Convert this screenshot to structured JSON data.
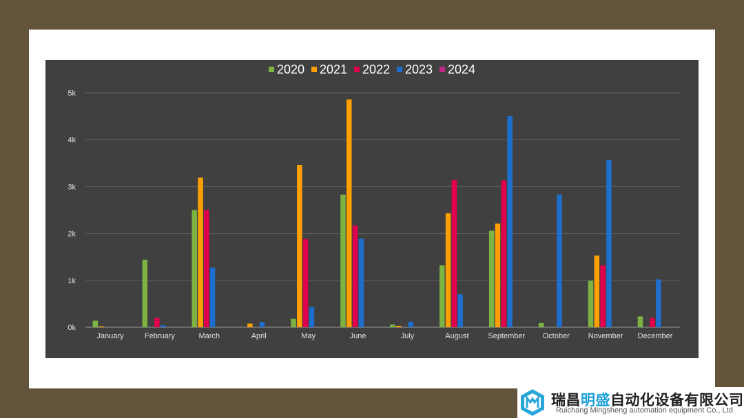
{
  "chart_data": {
    "type": "bar",
    "categories": [
      "January",
      "February",
      "March",
      "April",
      "May",
      "June",
      "July",
      "August",
      "September",
      "October",
      "November",
      "December"
    ],
    "series": [
      {
        "name": "2020",
        "color": "#7cb342",
        "values": [
          140,
          1440,
          2500,
          0,
          180,
          2830,
          60,
          1320,
          2060,
          90,
          990,
          230
        ]
      },
      {
        "name": "2021",
        "color": "#ffa000",
        "values": [
          20,
          0,
          3190,
          80,
          3460,
          4860,
          30,
          2430,
          2210,
          0,
          1530,
          0
        ]
      },
      {
        "name": "2022",
        "color": "#e0004d",
        "values": [
          0,
          200,
          2500,
          0,
          1880,
          2170,
          0,
          3140,
          3130,
          0,
          1320,
          200
        ]
      },
      {
        "name": "2023",
        "color": "#1e6ecd",
        "values": [
          0,
          40,
          1270,
          110,
          430,
          1890,
          120,
          700,
          4500,
          2830,
          3570,
          1020
        ]
      },
      {
        "name": "2024",
        "color": "#c2278a",
        "values": [
          0,
          0,
          0,
          0,
          0,
          0,
          0,
          0,
          0,
          0,
          0,
          0
        ]
      }
    ],
    "ylim": [
      0,
      5000
    ],
    "yticks": [
      0,
      1000,
      2000,
      3000,
      4000,
      5000
    ],
    "ytick_labels": [
      "0k",
      "1k",
      "2k",
      "3k",
      "4k",
      "5k"
    ],
    "grid": true,
    "legend_position": "top-center"
  },
  "watermark": {
    "cn_part1": "瑞昌",
    "cn_part2": "明盛",
    "cn_part3": "自动化设备有限公司",
    "en": "Ruichang Mingsheng automation equipment Co., Ltd",
    "logo_icon": "hexagon-logo-icon"
  }
}
